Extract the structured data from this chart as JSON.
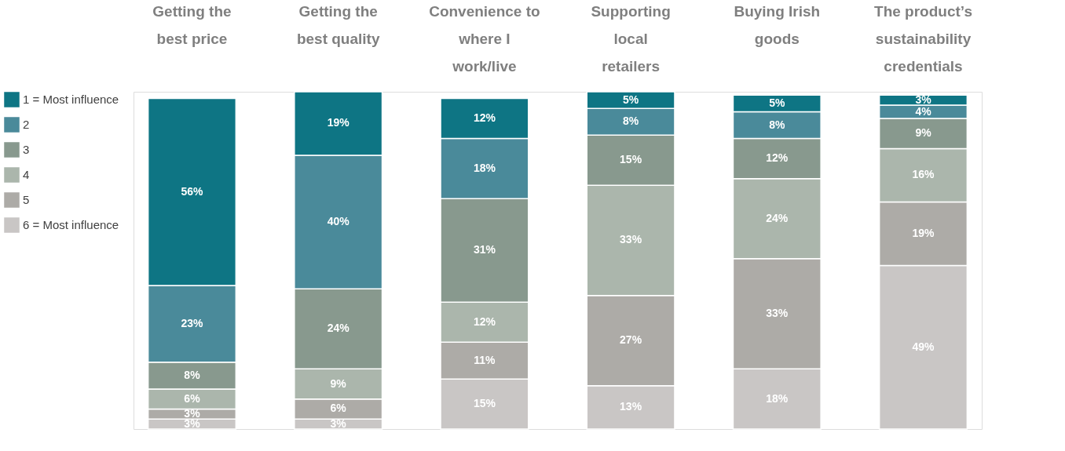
{
  "chart_data": {
    "type": "bar",
    "stacked": true,
    "legend": "left",
    "grid": false,
    "tick_labels": "x",
    "categories": [
      "Getting the best price",
      "Getting the best quality",
      "Convenience to where I work/live",
      "Supporting local retailers",
      "Buying Irish goods",
      "The product’s sustainability credentials"
    ],
    "ylim": [
      0,
      101
    ],
    "series": [
      {
        "name": "6 = Most influence",
        "color": "#c9c6c5",
        "values": [
          3,
          3,
          15,
          13,
          18,
          49
        ],
        "value_labels": [
          "3%",
          "3%",
          "15%",
          "13%",
          "18%",
          "49%"
        ]
      },
      {
        "name": "5",
        "color": "#adaba7",
        "values": [
          3,
          6,
          11,
          27,
          33,
          19
        ],
        "value_labels": [
          "3%",
          "6%",
          "11%",
          "27%",
          "33%",
          "19%"
        ]
      },
      {
        "name": "4",
        "color": "#abb6ac",
        "values": [
          6,
          9,
          12,
          33,
          24,
          16
        ],
        "value_labels": [
          "6%",
          "9%",
          "12%",
          "33%",
          "24%",
          "16%"
        ]
      },
      {
        "name": "3",
        "color": "#88998e",
        "values": [
          8,
          24,
          31,
          15,
          12,
          9
        ],
        "value_labels": [
          "8%",
          "24%",
          "31%",
          "15%",
          "12%",
          "9%"
        ]
      },
      {
        "name": "2",
        "color": "#4a8a9a",
        "values": [
          23,
          40,
          18,
          8,
          8,
          4
        ],
        "value_labels": [
          "23%",
          "40%",
          "18%",
          "8%",
          "8%",
          "4%"
        ]
      },
      {
        "name": "1 = Most influence",
        "color": "#0e7584",
        "values": [
          56,
          19,
          12,
          5,
          5,
          3
        ],
        "value_labels": [
          "56%",
          "19%",
          "12%",
          "5%",
          "5%",
          "3%"
        ]
      }
    ]
  }
}
